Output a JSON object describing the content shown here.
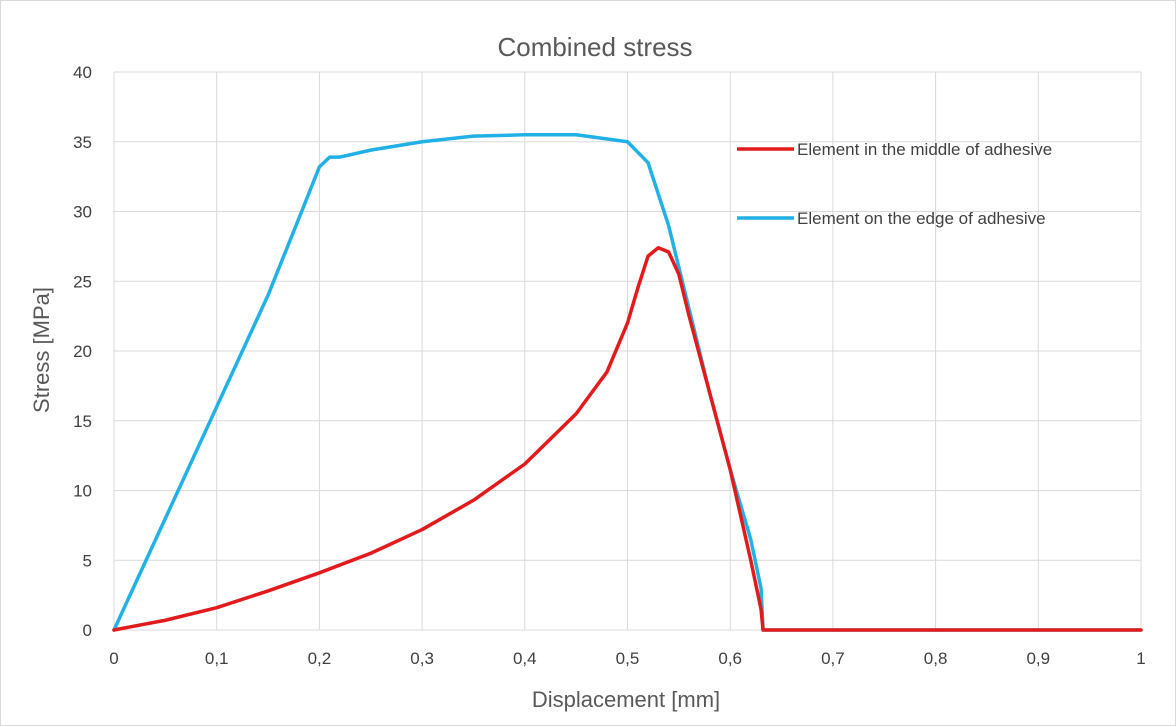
{
  "chart_data": {
    "type": "line",
    "title": "Combined stress",
    "xlabel": "Displacement [mm]",
    "ylabel": "Stress [MPa]",
    "xlim": [
      0,
      1
    ],
    "ylim": [
      0,
      40
    ],
    "x_ticks": [
      "0",
      "0,1",
      "0,2",
      "0,3",
      "0,4",
      "0,5",
      "0,6",
      "0,7",
      "0,8",
      "0,9",
      "1"
    ],
    "y_ticks": [
      "0",
      "5",
      "10",
      "15",
      "20",
      "25",
      "30",
      "35",
      "40"
    ],
    "grid": true,
    "legend_position": "right",
    "series": [
      {
        "name": "Element in the middle of adhesive",
        "color": "#e31a1c",
        "x": [
          0,
          0.05,
          0.1,
          0.15,
          0.2,
          0.25,
          0.3,
          0.35,
          0.4,
          0.45,
          0.48,
          0.5,
          0.51,
          0.52,
          0.53,
          0.54,
          0.55,
          0.56,
          0.58,
          0.6,
          0.62,
          0.63,
          0.632,
          0.64,
          0.7,
          0.8,
          0.9,
          1.0
        ],
        "values": [
          0,
          0.7,
          1.6,
          2.8,
          4.1,
          5.5,
          7.2,
          9.3,
          11.9,
          15.5,
          18.5,
          22.0,
          24.5,
          26.8,
          27.4,
          27.1,
          25.5,
          22.5,
          17.0,
          11.5,
          5.0,
          1.5,
          0,
          0,
          0,
          0,
          0,
          0
        ]
      },
      {
        "name": "Element on the edge of adhesive",
        "color": "#21b1e6",
        "x": [
          0,
          0.05,
          0.1,
          0.15,
          0.18,
          0.2,
          0.21,
          0.22,
          0.25,
          0.3,
          0.35,
          0.4,
          0.45,
          0.5,
          0.52,
          0.54,
          0.56,
          0.58,
          0.6,
          0.62,
          0.63,
          0.632,
          0.64,
          0.7,
          0.8,
          0.9,
          1.0
        ],
        "values": [
          0,
          8.0,
          16.0,
          24.0,
          29.5,
          33.2,
          33.9,
          33.9,
          34.4,
          35.0,
          35.4,
          35.5,
          35.5,
          35.0,
          33.5,
          29.0,
          23.0,
          17.0,
          11.5,
          6.5,
          3.0,
          0,
          0,
          0,
          0,
          0,
          0
        ]
      }
    ]
  }
}
